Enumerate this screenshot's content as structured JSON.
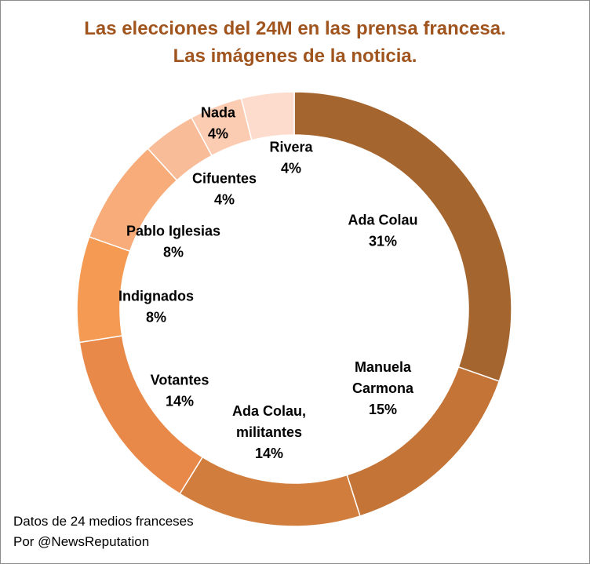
{
  "chart_data": {
    "type": "pie",
    "style": "donut",
    "title_lines": [
      "Las elecciones del 24M en las prensa francesa.",
      "Las imágenes de la noticia."
    ],
    "title_color": "#a0541e",
    "slices": [
      {
        "label_lines": [
          "Ada Colau"
        ],
        "percent_label": "31%",
        "value": 31,
        "color": "#a5652f"
      },
      {
        "label_lines": [
          "Manuela",
          "Carmona"
        ],
        "percent_label": "15%",
        "value": 15,
        "color": "#c37436"
      },
      {
        "label_lines": [
          "Ada Colau,",
          "militantes"
        ],
        "percent_label": "14%",
        "value": 14,
        "color": "#d17d3d"
      },
      {
        "label_lines": [
          "Votantes"
        ],
        "percent_label": "14%",
        "value": 14,
        "color": "#e8894a"
      },
      {
        "label_lines": [
          "Indignados"
        ],
        "percent_label": "8%",
        "value": 8,
        "color": "#f49a53"
      },
      {
        "label_lines": [
          "Pablo Iglesias"
        ],
        "percent_label": "8%",
        "value": 8,
        "color": "#f7ac7a"
      },
      {
        "label_lines": [
          "Cifuentes"
        ],
        "percent_label": "4%",
        "value": 4,
        "color": "#f8bc98"
      },
      {
        "label_lines": [
          "Nada"
        ],
        "percent_label": "4%",
        "value": 4,
        "color": "#fbccb2"
      },
      {
        "label_lines": [
          "Rivera"
        ],
        "percent_label": "4%",
        "value": 4,
        "color": "#fddccd"
      }
    ],
    "footer_lines": [
      "Datos de 24 medios franceses",
      "Por @NewsReputation"
    ]
  }
}
